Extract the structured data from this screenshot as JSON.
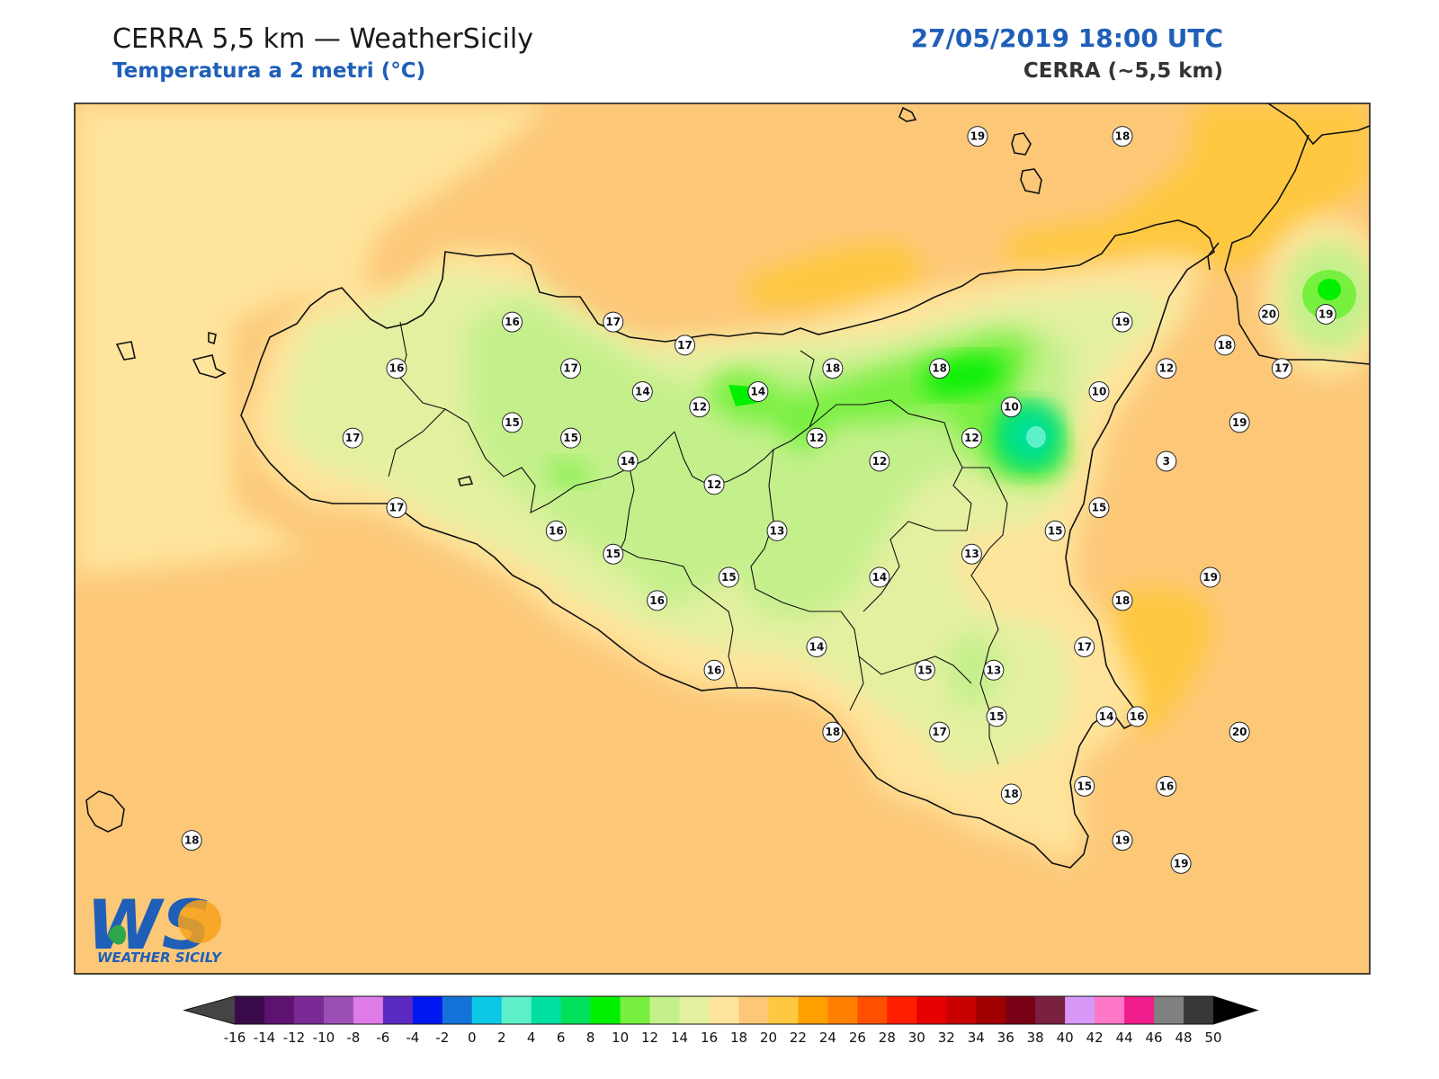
{
  "header": {
    "title": "CERRA 5,5 km — WeatherSicily",
    "variable": "Temperatura a 2 metri (°C)",
    "datetime": "27/05/2019 18:00 UTC",
    "model": "CERRA (~5,5 km)"
  },
  "logo": {
    "initials": "WS",
    "name": "WEATHER SICILY"
  },
  "colorbar": {
    "ticks": [
      -16,
      -14,
      -12,
      -10,
      -8,
      -6,
      -4,
      -2,
      0,
      2,
      4,
      6,
      8,
      10,
      12,
      14,
      16,
      18,
      20,
      22,
      24,
      26,
      28,
      30,
      32,
      34,
      36,
      38,
      40,
      42,
      44,
      46,
      48,
      50
    ],
    "colors": [
      "#3a0a4a",
      "#5e1270",
      "#7a2a96",
      "#9b4fb5",
      "#e07ce8",
      "#5a2ac0",
      "#0018f0",
      "#1473d8",
      "#0ac8e6",
      "#5ef0c8",
      "#00e0a0",
      "#00e05a",
      "#00f000",
      "#78f040",
      "#c4f08c",
      "#e4f0a0",
      "#ffe49c",
      "#fcc878",
      "#ffc840",
      "#ffa000",
      "#ff8000",
      "#ff5000",
      "#ff1e00",
      "#e60000",
      "#c80000",
      "#a00000",
      "#780014",
      "#7a2040",
      "#d898f8",
      "#ff78c8",
      "#f01e8c",
      "#808080",
      "#383838"
    ],
    "under_color": "#444444",
    "over_color": "#000000"
  },
  "stations": [
    {
      "t": "19",
      "lon": 13.97,
      "lat": 39.13
    },
    {
      "t": "18",
      "lon": 14.96,
      "lat": 39.13
    },
    {
      "t": "16",
      "lon": 10.79,
      "lat": 38.17
    },
    {
      "t": "17",
      "lon": 11.48,
      "lat": 38.17
    },
    {
      "t": "17",
      "lon": 11.97,
      "lat": 38.05
    },
    {
      "t": "20",
      "lon": 15.96,
      "lat": 38.21
    },
    {
      "t": "19",
      "lon": 16.35,
      "lat": 38.21
    },
    {
      "t": "19",
      "lon": 14.96,
      "lat": 38.17
    },
    {
      "t": "18",
      "lon": 15.66,
      "lat": 38.05
    },
    {
      "t": "16",
      "lon": 10.0,
      "lat": 37.93
    },
    {
      "t": "17",
      "lon": 11.19,
      "lat": 37.93
    },
    {
      "t": "18",
      "lon": 12.98,
      "lat": 37.93
    },
    {
      "t": "18",
      "lon": 13.71,
      "lat": 37.93
    },
    {
      "t": "12",
      "lon": 15.26,
      "lat": 37.93
    },
    {
      "t": "17",
      "lon": 16.05,
      "lat": 37.93
    },
    {
      "t": "14",
      "lon": 11.68,
      "lat": 37.81
    },
    {
      "t": "14",
      "lon": 12.47,
      "lat": 37.81
    },
    {
      "t": "10",
      "lon": 14.8,
      "lat": 37.81
    },
    {
      "t": "12",
      "lon": 12.07,
      "lat": 37.73
    },
    {
      "t": "10",
      "lon": 14.2,
      "lat": 37.73
    },
    {
      "t": "15",
      "lon": 10.79,
      "lat": 37.65
    },
    {
      "t": "15",
      "lon": 11.19,
      "lat": 37.57
    },
    {
      "t": "17",
      "lon": 9.7,
      "lat": 37.57
    },
    {
      "t": "12",
      "lon": 12.87,
      "lat": 37.57
    },
    {
      "t": "12",
      "lon": 13.93,
      "lat": 37.57
    },
    {
      "t": "19",
      "lon": 15.76,
      "lat": 37.65
    },
    {
      "t": "14",
      "lon": 11.58,
      "lat": 37.45
    },
    {
      "t": "12",
      "lon": 13.3,
      "lat": 37.45
    },
    {
      "t": "3",
      "lon": 15.26,
      "lat": 37.45
    },
    {
      "t": "12",
      "lon": 12.17,
      "lat": 37.33
    },
    {
      "t": "17",
      "lon": 10.0,
      "lat": 37.21
    },
    {
      "t": "15",
      "lon": 14.8,
      "lat": 37.21
    },
    {
      "t": "16",
      "lon": 11.09,
      "lat": 37.09
    },
    {
      "t": "13",
      "lon": 12.6,
      "lat": 37.09
    },
    {
      "t": "15",
      "lon": 14.5,
      "lat": 37.09
    },
    {
      "t": "15",
      "lon": 11.48,
      "lat": 36.97
    },
    {
      "t": "13",
      "lon": 13.93,
      "lat": 36.97
    },
    {
      "t": "15",
      "lon": 12.27,
      "lat": 36.85
    },
    {
      "t": "14",
      "lon": 13.3,
      "lat": 36.85
    },
    {
      "t": "19",
      "lon": 15.56,
      "lat": 36.85
    },
    {
      "t": "16",
      "lon": 11.78,
      "lat": 36.73
    },
    {
      "t": "18",
      "lon": 14.96,
      "lat": 36.73
    },
    {
      "t": "14",
      "lon": 12.87,
      "lat": 36.49
    },
    {
      "t": "17",
      "lon": 14.7,
      "lat": 36.49
    },
    {
      "t": "15",
      "lon": 13.61,
      "lat": 36.37
    },
    {
      "t": "13",
      "lon": 14.08,
      "lat": 36.37
    },
    {
      "t": "16",
      "lon": 12.17,
      "lat": 36.37
    },
    {
      "t": "16",
      "lon": 15.06,
      "lat": 36.13
    },
    {
      "t": "15",
      "lon": 14.1,
      "lat": 36.13
    },
    {
      "t": "14",
      "lon": 14.85,
      "lat": 36.13
    },
    {
      "t": "20",
      "lon": 15.76,
      "lat": 36.05
    },
    {
      "t": "17",
      "lon": 13.71,
      "lat": 36.05
    },
    {
      "t": "18",
      "lon": 12.98,
      "lat": 36.05
    },
    {
      "t": "15",
      "lon": 14.7,
      "lat": 35.77
    },
    {
      "t": "16",
      "lon": 15.26,
      "lat": 35.77
    },
    {
      "t": "18",
      "lon": 14.2,
      "lat": 35.73
    },
    {
      "t": "19",
      "lon": 14.96,
      "lat": 35.49
    },
    {
      "t": "19",
      "lon": 15.36,
      "lat": 35.37
    },
    {
      "t": "18",
      "lon": 8.6,
      "lat": 35.49
    }
  ]
}
